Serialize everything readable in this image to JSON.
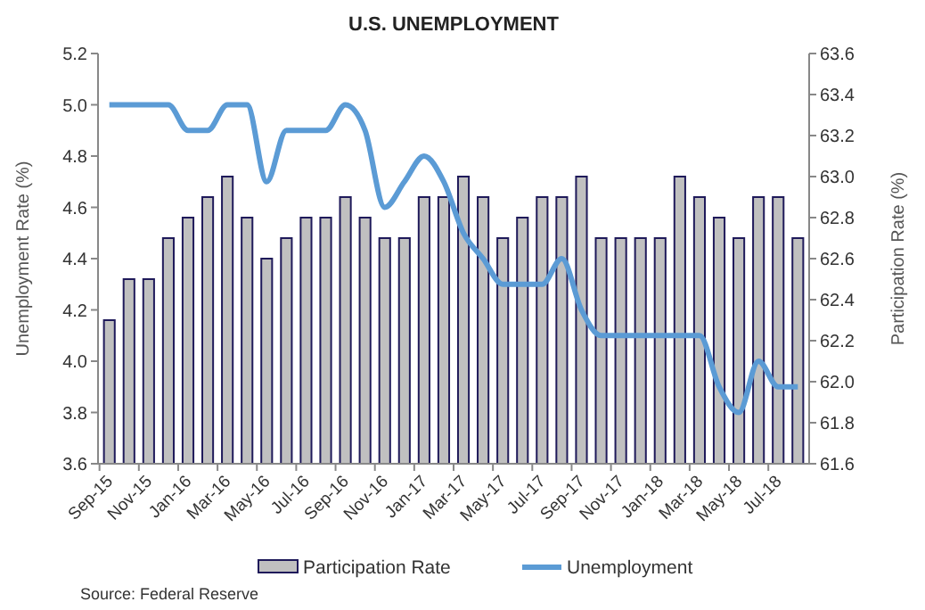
{
  "chart_data": {
    "type": "bar",
    "title": "U.S. UNEMPLOYMENT",
    "ylabel": "Unemployment Rate (%)",
    "y2label": "Participation Rate (%)",
    "categories": [
      "Sep-15",
      null,
      "Nov-15",
      null,
      "Jan-16",
      null,
      "Mar-16",
      null,
      "May-16",
      null,
      "Jul-16",
      null,
      "Sep-16",
      null,
      "Nov-16",
      null,
      "Jan-17",
      null,
      "Mar-17",
      null,
      "May-17",
      null,
      "Jul-17",
      null,
      "Sep-17",
      null,
      "Nov-17",
      null,
      "Jan-18",
      null,
      "Mar-18",
      null,
      "May-18",
      null,
      "Jul-18",
      null
    ],
    "series": [
      {
        "name": "Participation Rate",
        "axis": "y2",
        "color": "#c0c0c0",
        "values": [
          62.3,
          62.5,
          62.5,
          62.7,
          62.8,
          62.9,
          63.0,
          62.8,
          62.6,
          62.7,
          62.8,
          62.8,
          62.9,
          62.8,
          62.7,
          62.7,
          62.9,
          62.9,
          63.0,
          62.9,
          62.7,
          62.8,
          62.9,
          62.9,
          63.0,
          62.7,
          62.7,
          62.7,
          62.7,
          63.0,
          62.9,
          62.8,
          62.7,
          62.9,
          62.9,
          62.7
        ]
      },
      {
        "name": "Unemployment",
        "type": "line",
        "color": "#5b9bd5",
        "values": [
          5.0,
          5.0,
          5.0,
          5.0,
          4.9,
          4.9,
          5.0,
          5.0,
          4.7,
          4.9,
          4.9,
          4.9,
          5.0,
          4.9,
          4.6,
          4.7,
          4.8,
          4.7,
          4.5,
          4.4,
          4.3,
          4.3,
          4.3,
          4.4,
          4.2,
          4.1,
          4.1,
          4.1,
          4.1,
          4.1,
          4.1,
          3.9,
          3.8,
          4.0,
          3.9,
          3.9
        ]
      }
    ],
    "ylim": [
      3.6,
      5.2
    ],
    "yticks": [
      {
        "value": 3.6,
        "label": "3.6"
      },
      {
        "value": 3.8,
        "label": "3.8"
      },
      {
        "value": 4.0,
        "label": "4.0"
      },
      {
        "value": 4.2,
        "label": "4.2"
      },
      {
        "value": 4.4,
        "label": "4.4"
      },
      {
        "value": 4.6,
        "label": "4.6"
      },
      {
        "value": 4.8,
        "label": "4.8"
      },
      {
        "value": 5.0,
        "label": "5.0"
      },
      {
        "value": 5.2,
        "label": "5.2"
      }
    ],
    "y2lim": [
      61.6,
      63.6
    ],
    "y2ticks": [
      {
        "value": 61.6,
        "label": "61.6"
      },
      {
        "value": 61.8,
        "label": "61.8"
      },
      {
        "value": 62.0,
        "label": "62.0"
      },
      {
        "value": 62.2,
        "label": "62.2"
      },
      {
        "value": 62.4,
        "label": "62.4"
      },
      {
        "value": 62.6,
        "label": "62.6"
      },
      {
        "value": 62.8,
        "label": "62.8"
      },
      {
        "value": 63.0,
        "label": "63.0"
      },
      {
        "value": 63.2,
        "label": "63.2"
      },
      {
        "value": 63.4,
        "label": "63.4"
      },
      {
        "value": 63.6,
        "label": "63.6"
      }
    ],
    "legend": "bottom",
    "grid": false,
    "marker": "none",
    "line_style": "solid",
    "annotations": [
      "Source: Federal Reserve"
    ]
  }
}
